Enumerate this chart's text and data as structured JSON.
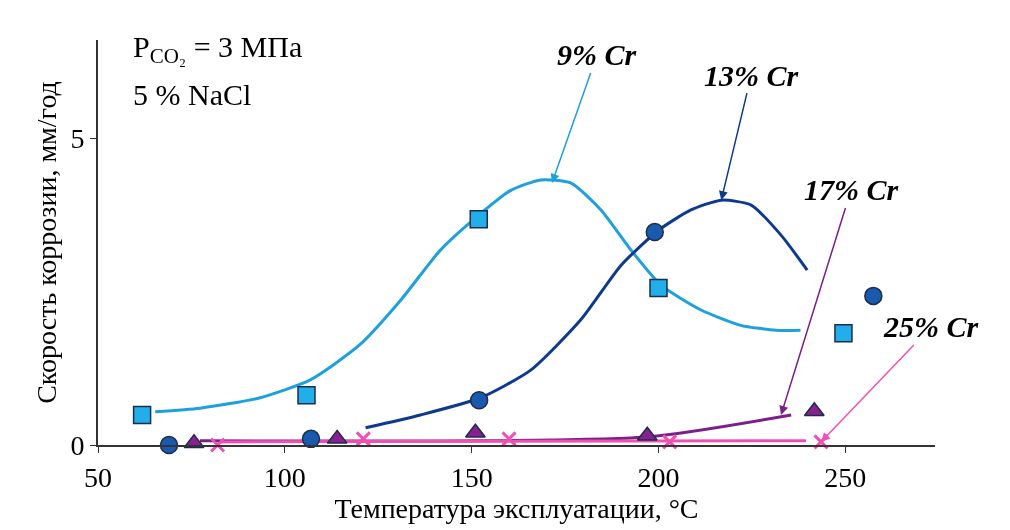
{
  "chart_data": {
    "type": "scatter",
    "xlabel": "Температура эксплуатации, °C",
    "ylabel": "Скорость коррозии, мм/год",
    "xlim": [
      50,
      274
    ],
    "xticks": [
      50,
      100,
      150,
      200,
      250
    ],
    "ylim": [
      0,
      6.6
    ],
    "yticks": [
      0,
      5
    ],
    "grid": false,
    "annotations": [
      "P$_{CO₂}$ = 3 МПа",
      "5 % NaCl",
      {
        "text": "9% Cr",
        "x": 171.5,
        "y": 4.27
      },
      {
        "text": "13% Cr",
        "x": 216.8,
        "y": 3.99
      },
      {
        "text": "17% Cr",
        "x": 232.8,
        "y": 0.49
      },
      {
        "text": "25% Cr",
        "x": 243.5,
        "y": 0.05
      }
    ],
    "series": [
      {
        "type": "line",
        "color": "#1ea0dc",
        "marker": "none",
        "x": [
          65.3,
          77.3,
          93.4,
          106.8,
          120,
          131,
          141.7,
          152,
          160.5,
          168.5,
          176.5,
          184.6,
          192.6,
          200.6,
          211.4,
          222,
          231.5,
          238
        ],
        "values": [
          0.54,
          0.6,
          0.77,
          1.06,
          1.63,
          2.36,
          3.18,
          3.75,
          4.15,
          4.32,
          4.27,
          3.83,
          3.18,
          2.61,
          2.2,
          1.95,
          1.87,
          1.87
        ]
      },
      {
        "type": "line",
        "color": "#0d3a8c",
        "marker": "none",
        "x": [
          121.6,
          136.3,
          152.4,
          165.8,
          179.2,
          190,
          200,
          208.7,
          216.8,
          224.8,
          232.8,
          239.8
        ],
        "values": [
          0.28,
          0.49,
          0.77,
          1.22,
          2.04,
          2.93,
          3.5,
          3.83,
          3.99,
          3.91,
          3.42,
          2.85
        ]
      },
      {
        "type": "line",
        "color": "#7b1f8a",
        "marker": "none",
        "x": [
          77.3,
          196.6,
          235.5
        ],
        "values": [
          0.07,
          0.13,
          0.49
        ]
      },
      {
        "type": "line",
        "color": "#f050b4",
        "marker": "none",
        "x": [
          82.7,
          239.5
        ],
        "values": [
          0.05,
          0.07
        ]
      },
      {
        "type": "scatter",
        "color": "#22aeea",
        "marker": "square",
        "x": [
          61.8,
          105.8,
          151.9,
          200,
          249.5
        ],
        "values": [
          0.49,
          0.81,
          3.68,
          2.56,
          1.82
        ]
      },
      {
        "type": "scatter",
        "color": "#1a5aae",
        "marker": "circle",
        "x": [
          69,
          107,
          152,
          199,
          257.5
        ],
        "values": [
          0,
          0.1,
          0.73,
          3.47,
          2.43
        ]
      },
      {
        "type": "scatter",
        "color": "#8a2090",
        "marker": "triangle",
        "x": [
          75.7,
          114,
          151,
          197,
          241.7
        ],
        "values": [
          0.03,
          0.1,
          0.2,
          0.15,
          0.55
        ]
      },
      {
        "type": "scatter",
        "color": "#f050b4",
        "marker": "cross",
        "x": [
          82,
          121,
          160,
          203,
          243.5
        ],
        "values": [
          0,
          0.1,
          0.1,
          0.05,
          0.05
        ]
      }
    ]
  }
}
